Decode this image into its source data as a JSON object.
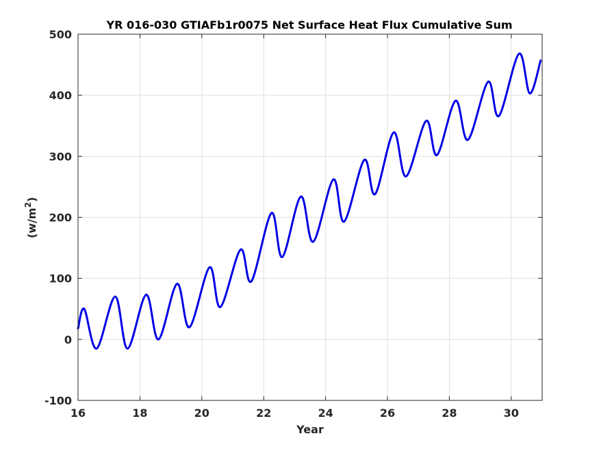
{
  "chart_data": {
    "type": "line",
    "title": "YR 016-030 GTIAFb1r0075 Net Surface Heat Flux  Cumulative Sum",
    "xlabel": "Year",
    "ylabel_main": "(w/m",
    "ylabel_sup": "2",
    "ylabel_close": ")",
    "xlim": [
      16,
      31
    ],
    "ylim": [
      -100,
      500
    ],
    "xticks": [
      16,
      18,
      20,
      22,
      24,
      26,
      28,
      30
    ],
    "xtick_labels": [
      "16",
      "18",
      "20",
      "22",
      "24",
      "26",
      "28",
      "30"
    ],
    "yticks": [
      -100,
      0,
      100,
      200,
      300,
      400,
      500
    ],
    "ytick_labels": [
      "-100",
      "0",
      "100",
      "200",
      "300",
      "400",
      "500"
    ],
    "grid": true,
    "line_color": "#0000e6",
    "series": [
      {
        "x": [
          16.0,
          16.2,
          16.6,
          17.2,
          17.6,
          18.2,
          18.6,
          19.2,
          19.6,
          20.25,
          20.6,
          21.25,
          21.6,
          22.25,
          22.6,
          23.2,
          23.6,
          24.25,
          24.6,
          25.25,
          25.6,
          26.2,
          26.6,
          27.25,
          27.6,
          28.2,
          28.6,
          29.25,
          29.6,
          30.25,
          30.6,
          30.95
        ],
        "y": [
          18,
          50,
          -15,
          70,
          -15,
          73,
          0,
          91,
          20,
          118,
          53,
          147,
          95,
          207,
          135,
          234,
          160,
          262,
          193,
          294,
          238,
          339,
          267,
          358,
          302,
          391,
          327,
          422,
          366,
          468,
          403,
          457
        ]
      }
    ]
  }
}
